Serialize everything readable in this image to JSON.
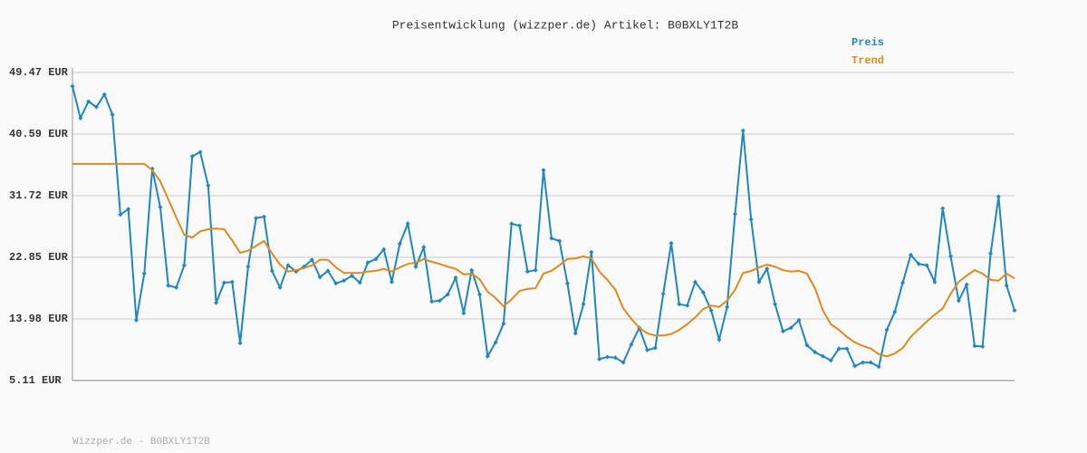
{
  "chart_data": {
    "type": "line",
    "title": "Preisentwicklung (wizzper.de) Artikel: B0BXLY1T2B",
    "footer": "Wizzper.de - B0BXLY1T2B",
    "ylim": [
      5.11,
      49.47
    ],
    "yticks": [
      {
        "value": 5.11,
        "label": "5.11 EUR"
      },
      {
        "value": 13.98,
        "label": "13.98 EUR"
      },
      {
        "value": 22.85,
        "label": "22.85 EUR"
      },
      {
        "value": 31.72,
        "label": "31.72 EUR"
      },
      {
        "value": 40.59,
        "label": "40.59 EUR"
      },
      {
        "value": 49.47,
        "label": "49.47 EUR"
      }
    ],
    "grid": true,
    "series": [
      {
        "name": "Preis",
        "color": "#1f86c0",
        "markers": true,
        "values": [
          47.5,
          42.9,
          45.3,
          44.5,
          46.3,
          43.4,
          29.0,
          29.8,
          13.8,
          20.5,
          35.6,
          30.1,
          18.8,
          18.5,
          21.7,
          37.4,
          38.0,
          33.2,
          16.3,
          19.2,
          19.3,
          10.5,
          21.5,
          28.5,
          28.7,
          20.9,
          18.5,
          21.7,
          20.8,
          21.5,
          22.5,
          20.0,
          20.9,
          19.1,
          19.5,
          20.2,
          19.2,
          22.1,
          22.6,
          24.0,
          19.3,
          24.8,
          27.7,
          21.5,
          24.3,
          16.5,
          16.6,
          17.5,
          19.9,
          14.8,
          21.0,
          17.5,
          8.6,
          10.6,
          13.3,
          27.7,
          27.4,
          20.8,
          21.0,
          35.4,
          25.6,
          25.2,
          19.1,
          11.9,
          16.1,
          23.6,
          8.2,
          8.5,
          8.4,
          7.7,
          10.3,
          12.7,
          9.5,
          9.8,
          17.6,
          24.9,
          16.1,
          15.9,
          19.3,
          17.8,
          15.2,
          11.0,
          15.7,
          29.1,
          41.1,
          28.3,
          19.3,
          21.2,
          16.1,
          12.2,
          12.7,
          13.8,
          10.2,
          9.2,
          8.6,
          8.0,
          9.7,
          9.7,
          7.2,
          7.7,
          7.7,
          7.1,
          12.4,
          15.0,
          19.2,
          23.2,
          21.9,
          21.7,
          19.3,
          29.9,
          23.0,
          16.6,
          18.9,
          10.1,
          10.0,
          23.4,
          31.6,
          18.8,
          15.2
        ]
      },
      {
        "name": "Trend",
        "color": "#e08a1e",
        "markers": false,
        "values": [
          36.3,
          36.3,
          36.3,
          36.3,
          36.3,
          36.3,
          36.3,
          36.3,
          36.3,
          36.3,
          35.4,
          33.8,
          31.2,
          28.6,
          26.1,
          25.7,
          26.6,
          26.9,
          27.0,
          26.9,
          25.3,
          23.5,
          23.8,
          24.5,
          25.2,
          23.4,
          21.8,
          20.8,
          21.0,
          21.3,
          21.7,
          22.5,
          22.5,
          21.4,
          20.6,
          20.6,
          20.6,
          20.8,
          20.9,
          21.2,
          20.8,
          21.4,
          21.9,
          22.1,
          22.6,
          22.2,
          21.9,
          21.5,
          21.2,
          20.4,
          20.5,
          19.7,
          17.9,
          17.0,
          15.8,
          16.8,
          18.0,
          18.3,
          18.4,
          20.5,
          20.9,
          21.7,
          22.6,
          22.7,
          23.0,
          22.7,
          20.8,
          19.6,
          18.2,
          15.5,
          14.0,
          12.7,
          11.9,
          11.6,
          11.6,
          11.8,
          12.4,
          13.2,
          14.2,
          15.4,
          15.9,
          15.7,
          16.6,
          18.2,
          20.6,
          20.9,
          21.4,
          21.8,
          21.5,
          21.0,
          20.8,
          20.9,
          20.5,
          18.4,
          15.2,
          13.2,
          12.4,
          11.4,
          10.6,
          10.1,
          9.7,
          8.9,
          8.6,
          9.0,
          9.8,
          11.4,
          12.5,
          13.6,
          14.6,
          15.5,
          17.6,
          19.3,
          20.2,
          21.0,
          20.5,
          19.6,
          19.5,
          20.5,
          19.8
        ]
      }
    ]
  }
}
